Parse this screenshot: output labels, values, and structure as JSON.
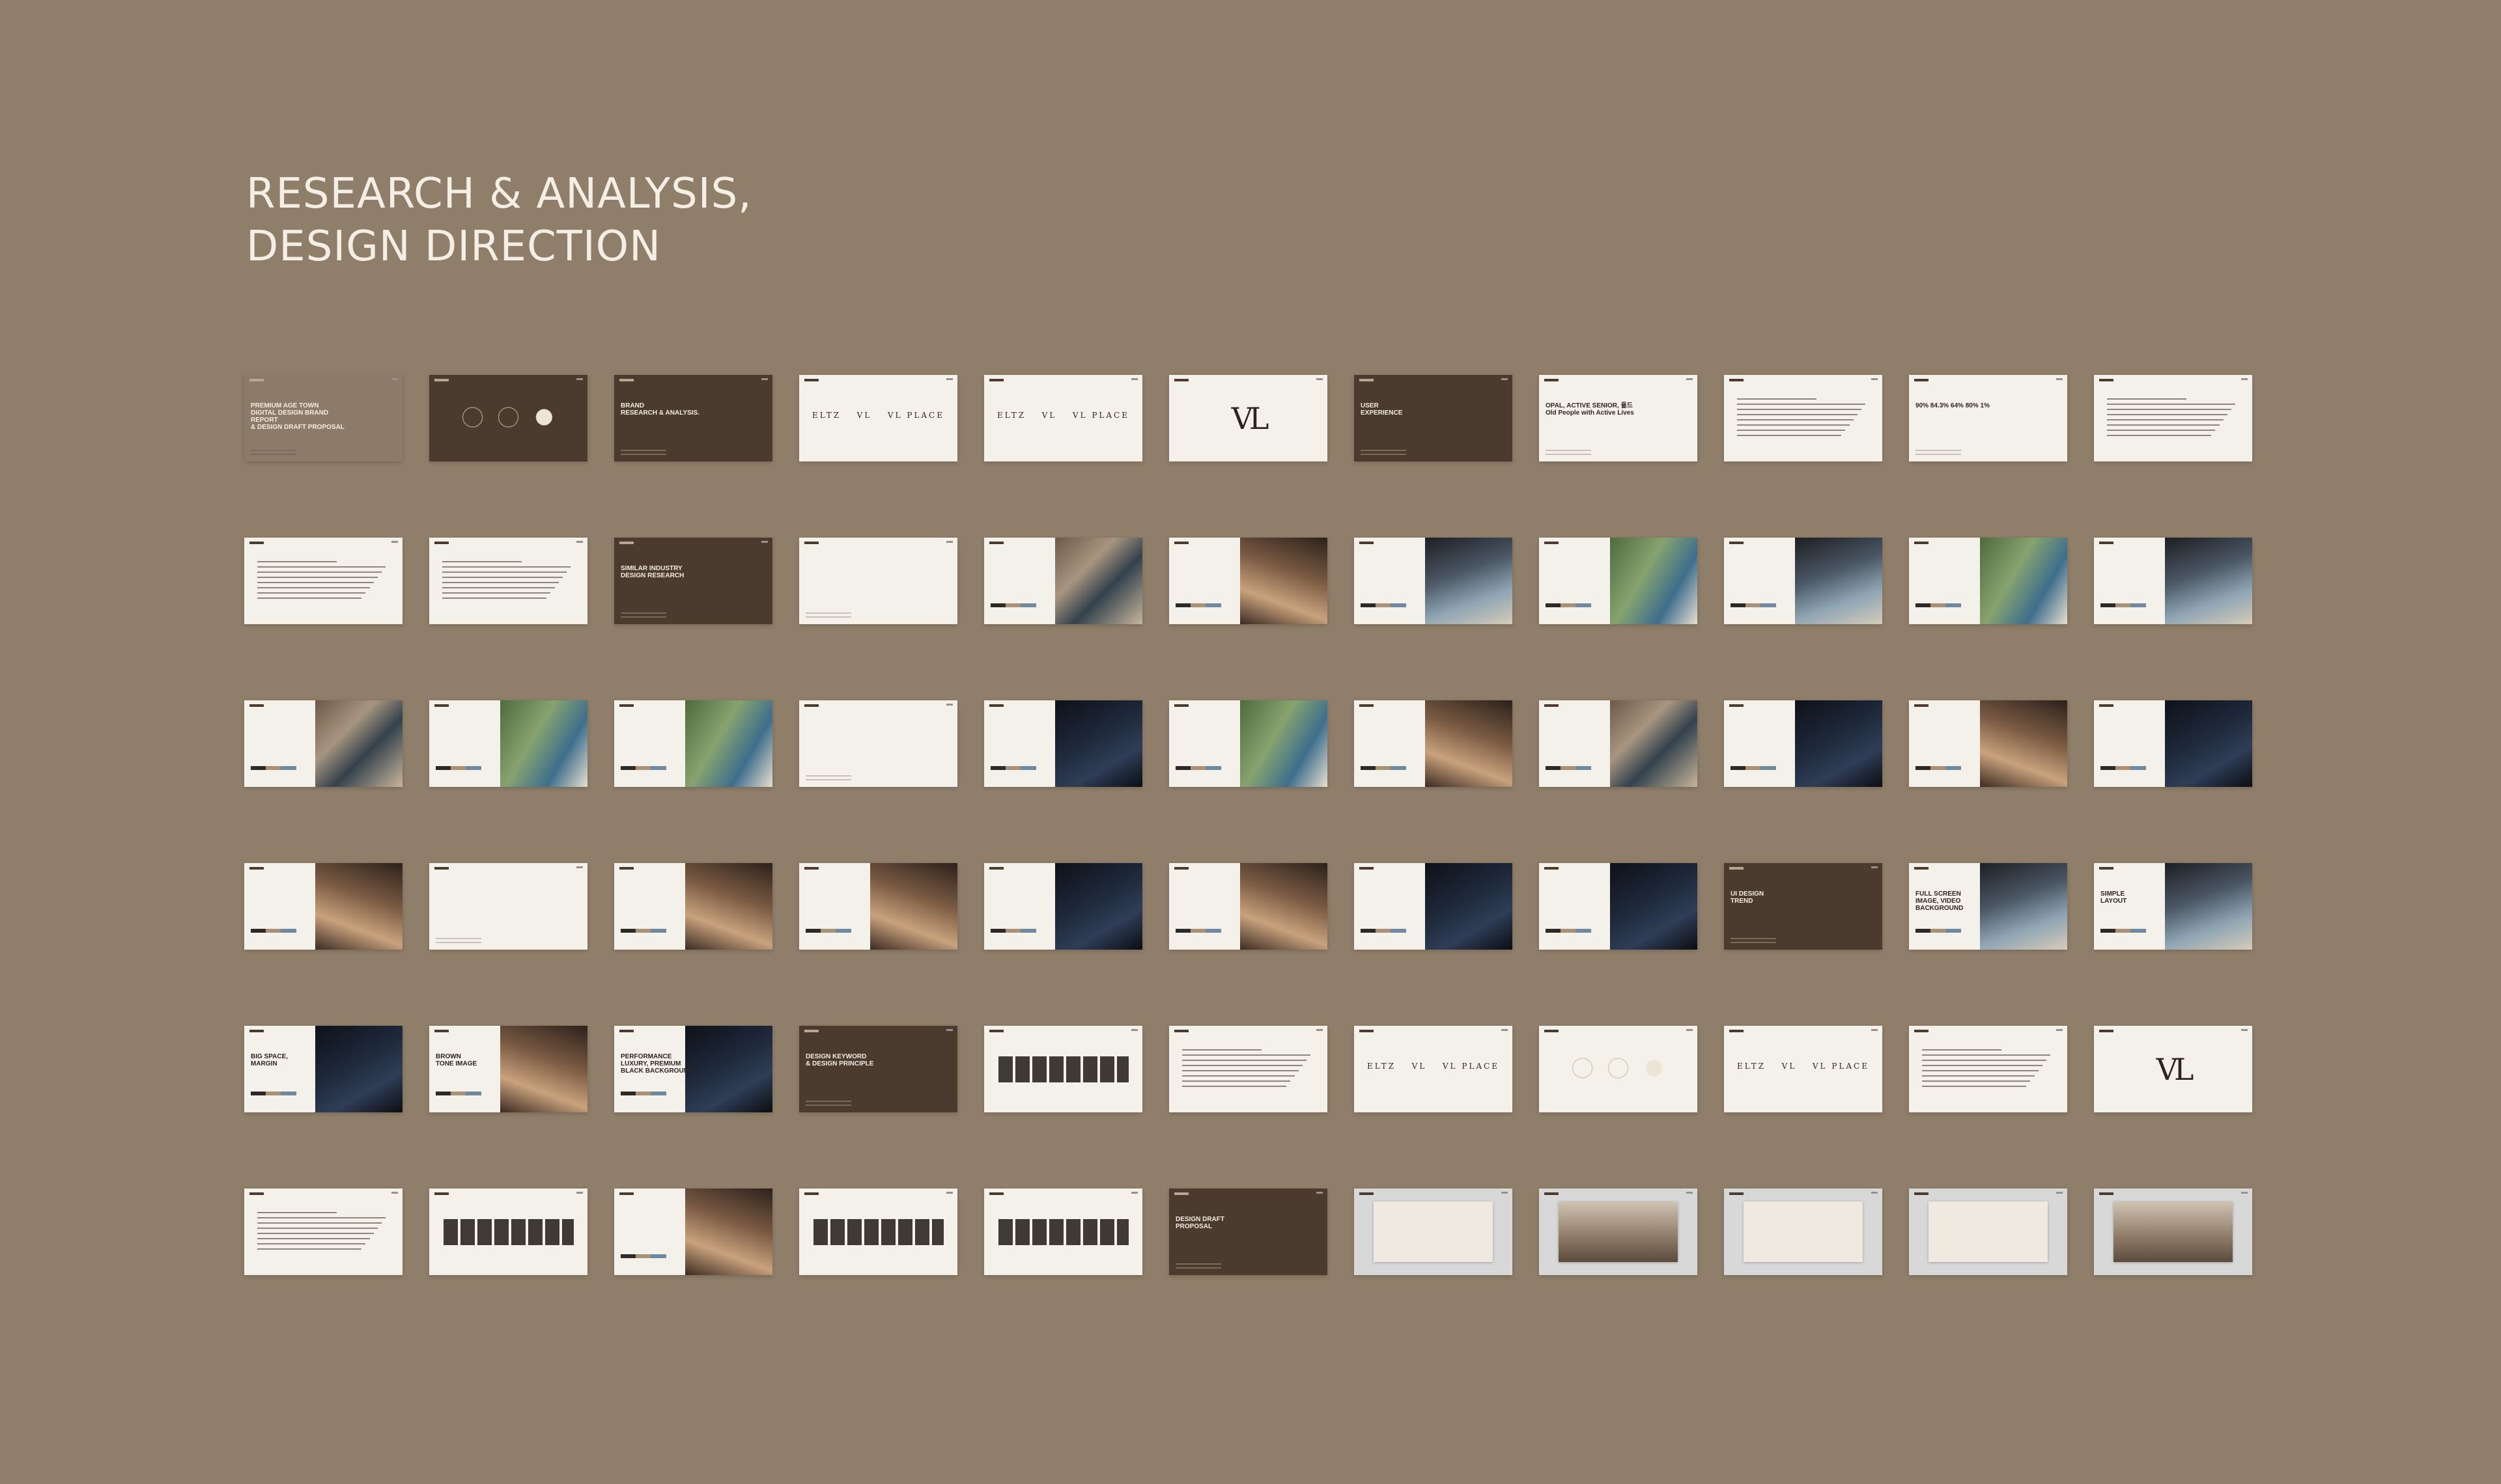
{
  "title_lines": [
    "RESEARCH & ANALYSIS,",
    "DESIGN DIRECTION"
  ],
  "slides": [
    {
      "variant": "tan",
      "title": "PREMIUM AGE TOWN\nDIGITAL DESIGN BRAND REPORT\n& DESIGN DRAFT PROPOSAL",
      "art": "lines"
    },
    {
      "variant": "dark",
      "title": "",
      "art": "circles"
    },
    {
      "variant": "dark",
      "title": "BRAND\nRESEARCH & ANALYSIS.",
      "art": "lines"
    },
    {
      "variant": "light",
      "title": "",
      "art": "wordmarks",
      "marks": [
        "ELTZ",
        "VL",
        "VL PLACE"
      ]
    },
    {
      "variant": "light",
      "title": "",
      "art": "wordmarks",
      "marks": [
        "ELTZ",
        "VL",
        "VL PLACE"
      ]
    },
    {
      "variant": "light",
      "title": "",
      "art": "monogram",
      "mark": "VL"
    },
    {
      "variant": "dark",
      "title": "USER\nEXPERIENCE",
      "art": "lines"
    },
    {
      "variant": "light",
      "title": "OPAL, ACTIVE SENIOR, 욜드\nOld People with Active Lives",
      "art": "lines"
    },
    {
      "variant": "light",
      "title": "",
      "art": "text"
    },
    {
      "variant": "light",
      "title": "90%   84.3%   64%   80%   1%",
      "art": "lines"
    },
    {
      "variant": "light",
      "title": "",
      "art": "text"
    },
    {
      "variant": "light",
      "title": "",
      "art": "text"
    },
    {
      "variant": "light",
      "title": "",
      "art": "text"
    },
    {
      "variant": "dark",
      "title": "SIMILAR INDUSTRY\nDESIGN RESEARCH",
      "art": "lines"
    },
    {
      "variant": "light",
      "title": "",
      "art": "lines"
    },
    {
      "variant": "light",
      "title": "",
      "art": "img",
      "img": "a"
    },
    {
      "variant": "light",
      "title": "",
      "art": "img",
      "img": "d"
    },
    {
      "variant": "light",
      "title": "",
      "art": "img",
      "img": "b"
    },
    {
      "variant": "light",
      "title": "",
      "art": "img",
      "img": "c"
    },
    {
      "variant": "light",
      "title": "",
      "art": "img",
      "img": "b"
    },
    {
      "variant": "light",
      "title": "",
      "art": "img",
      "img": "c"
    },
    {
      "variant": "light",
      "title": "",
      "art": "img",
      "img": "b"
    },
    {
      "variant": "light",
      "title": "",
      "art": "img",
      "img": "a"
    },
    {
      "variant": "light",
      "title": "",
      "art": "img",
      "img": "c"
    },
    {
      "variant": "light",
      "title": "",
      "art": "img",
      "img": "c"
    },
    {
      "variant": "light",
      "title": "",
      "art": "lines"
    },
    {
      "variant": "light",
      "title": "",
      "art": "img",
      "img": "e"
    },
    {
      "variant": "light",
      "title": "",
      "art": "img",
      "img": "c"
    },
    {
      "variant": "light",
      "title": "",
      "art": "img",
      "img": "d"
    },
    {
      "variant": "light",
      "title": "",
      "art": "img",
      "img": "a"
    },
    {
      "variant": "light",
      "title": "",
      "art": "img",
      "img": "e"
    },
    {
      "variant": "light",
      "title": "",
      "art": "img",
      "img": "d"
    },
    {
      "variant": "light",
      "title": "",
      "art": "img",
      "img": "e"
    },
    {
      "variant": "light",
      "title": "",
      "art": "img",
      "img": "d"
    },
    {
      "variant": "light",
      "title": "",
      "art": "lines"
    },
    {
      "variant": "light",
      "title": "",
      "art": "img",
      "img": "d"
    },
    {
      "variant": "light",
      "title": "",
      "art": "img",
      "img": "d"
    },
    {
      "variant": "light",
      "title": "",
      "art": "img",
      "img": "e"
    },
    {
      "variant": "light",
      "title": "",
      "art": "img",
      "img": "d"
    },
    {
      "variant": "light",
      "title": "",
      "art": "img",
      "img": "e"
    },
    {
      "variant": "light",
      "title": "",
      "art": "img",
      "img": "e"
    },
    {
      "variant": "dark",
      "title": "UI DESIGN\nTREND",
      "art": "lines"
    },
    {
      "variant": "light",
      "title": "FULL SCREEN\nIMAGE, VIDEO\nBACKGROUND",
      "art": "img",
      "img": "b"
    },
    {
      "variant": "light",
      "title": "SIMPLE\nLAYOUT",
      "art": "img",
      "img": "b"
    },
    {
      "variant": "light",
      "title": "BIG SPACE,\nMARGIN",
      "art": "img",
      "img": "e"
    },
    {
      "variant": "light",
      "title": "BROWN\nTONE IMAGE",
      "art": "img",
      "img": "d"
    },
    {
      "variant": "light",
      "title": "PERFORMANCE\nLUXURY, PREMIUM\nBLACK BACKGROUND",
      "art": "img",
      "img": "e"
    },
    {
      "variant": "dark",
      "title": "DESIGN KEYWORD\n& DESIGN PRINCIPLE",
      "art": "lines"
    },
    {
      "variant": "light",
      "title": "",
      "art": "bars"
    },
    {
      "variant": "light",
      "title": "",
      "art": "text"
    },
    {
      "variant": "light",
      "title": "",
      "art": "wordmarks",
      "marks": [
        "ELTZ",
        "VL",
        "VL PLACE"
      ]
    },
    {
      "variant": "light",
      "title": "",
      "art": "circles"
    },
    {
      "variant": "light",
      "title": "",
      "art": "wordmarks",
      "marks": [
        "ELTZ",
        "VL",
        "VL PLACE"
      ]
    },
    {
      "variant": "light",
      "title": "",
      "art": "text"
    },
    {
      "variant": "light",
      "title": "",
      "art": "monogram",
      "mark": "VL"
    },
    {
      "variant": "light",
      "title": "",
      "art": "text"
    },
    {
      "variant": "light",
      "title": "",
      "art": "bars"
    },
    {
      "variant": "light",
      "title": "",
      "art": "img",
      "img": "d"
    },
    {
      "variant": "light",
      "title": "",
      "art": "bars"
    },
    {
      "variant": "light",
      "title": "",
      "art": "bars"
    },
    {
      "variant": "dark",
      "title": "DESIGN DRAFT\nPROPOSAL",
      "art": "lines"
    },
    {
      "variant": "gray",
      "title": "",
      "art": "screen"
    },
    {
      "variant": "gray",
      "title": "",
      "art": "screen-photo"
    },
    {
      "variant": "gray",
      "title": "",
      "art": "screen"
    },
    {
      "variant": "gray",
      "title": "",
      "art": "screen"
    },
    {
      "variant": "gray",
      "title": "",
      "art": "screen-photo"
    }
  ]
}
